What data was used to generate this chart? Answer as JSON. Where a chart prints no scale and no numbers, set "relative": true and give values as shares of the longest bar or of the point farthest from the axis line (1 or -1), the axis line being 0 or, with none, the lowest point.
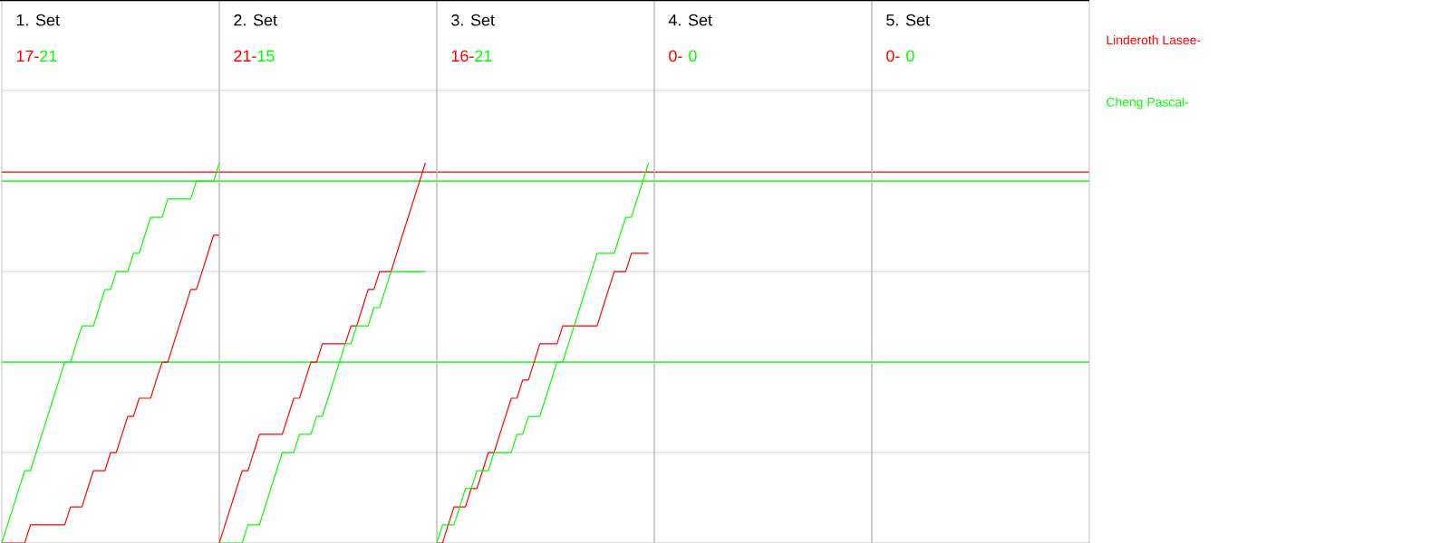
{
  "chart_data": [
    {
      "type": "line",
      "relative": true,
      "title": "1. Set",
      "annotations": [
        "17-",
        "21"
      ],
      "grid": "y",
      "categories": [
        null,
        null,
        null,
        null,
        null,
        null,
        null,
        null,
        null,
        null,
        null,
        null,
        null,
        null,
        null,
        null,
        null,
        null,
        null,
        null,
        null,
        null,
        null,
        null,
        null,
        null,
        null,
        null,
        null,
        null,
        null,
        null,
        null,
        null,
        null,
        null,
        null,
        null,
        null
      ],
      "ref_lines": [
        {
          "axis": "y",
          "value": 0.976,
          "color": "#ff0000"
        },
        {
          "axis": "y",
          "value": 0.952,
          "color": "#00ff00"
        },
        {
          "axis": "y",
          "value": 0.476,
          "color": "#00ff00"
        }
      ],
      "series": [
        {
          "name": "Linderoth Lasee-",
          "color": "#ff0000",
          "values": [
            0,
            0,
            0,
            0,
            0,
            0.048,
            0.048,
            0.048,
            0.048,
            0.048,
            0.048,
            0.048,
            0.095,
            0.095,
            0.095,
            0.143,
            0.19,
            0.19,
            0.19,
            0.238,
            0.238,
            0.286,
            0.333,
            0.333,
            0.381,
            0.381,
            0.381,
            0.429,
            0.476,
            0.476,
            0.524,
            0.571,
            0.619,
            0.667,
            0.667,
            0.714,
            0.762,
            0.81,
            0.81
          ]
        },
        {
          "name": "Cheng Pascal-",
          "color": "#00ff00",
          "values": [
            0,
            0.048,
            0.095,
            0.143,
            0.19,
            0.19,
            0.238,
            0.286,
            0.333,
            0.381,
            0.429,
            0.476,
            0.476,
            0.524,
            0.571,
            0.571,
            0.571,
            0.619,
            0.667,
            0.667,
            0.714,
            0.714,
            0.714,
            0.762,
            0.762,
            0.81,
            0.857,
            0.857,
            0.857,
            0.905,
            0.905,
            0.905,
            0.905,
            0.905,
            0.952,
            0.952,
            0.952,
            0.952,
            1
          ]
        }
      ]
    },
    {
      "type": "line",
      "relative": true,
      "title": "2. Set",
      "annotations": [
        "21-",
        "15"
      ],
      "categories": [
        null,
        null,
        null,
        null,
        null,
        null,
        null,
        null,
        null,
        null,
        null,
        null,
        null,
        null,
        null,
        null,
        null,
        null,
        null,
        null,
        null,
        null,
        null,
        null,
        null,
        null,
        null,
        null,
        null,
        null,
        null,
        null,
        null,
        null,
        null,
        null,
        null,
        null,
        null
      ],
      "series": [
        {
          "color": "#ff0000",
          "values": [
            0,
            0.048,
            0.095,
            0.143,
            0.19,
            0.19,
            0.238,
            0.286,
            0.286,
            0.286,
            0.286,
            0.286,
            0.333,
            0.381,
            0.381,
            0.429,
            0.476,
            0.476,
            0.524,
            0.524,
            0.524,
            0.524,
            0.524,
            0.571,
            0.571,
            0.619,
            0.667,
            0.667,
            0.714,
            0.714,
            0.714,
            0.762,
            0.81,
            0.857,
            0.905,
            0.952,
            1,
            null,
            null
          ]
        },
        {
          "color": "#00ff00",
          "values": [
            0,
            0,
            0,
            0,
            0,
            0.048,
            0.048,
            0.048,
            0.095,
            0.143,
            0.19,
            0.238,
            0.238,
            0.238,
            0.286,
            0.286,
            0.286,
            0.333,
            0.333,
            0.381,
            0.429,
            0.476,
            0.524,
            0.524,
            0.571,
            0.571,
            0.571,
            0.619,
            0.619,
            0.667,
            0.714,
            0.714,
            0.714,
            0.714,
            0.714,
            0.714,
            0.714,
            null,
            null
          ]
        }
      ]
    },
    {
      "type": "line",
      "relative": true,
      "title": "3. Set",
      "annotations": [
        "16-",
        "21"
      ],
      "categories": [
        null,
        null,
        null,
        null,
        null,
        null,
        null,
        null,
        null,
        null,
        null,
        null,
        null,
        null,
        null,
        null,
        null,
        null,
        null,
        null,
        null,
        null,
        null,
        null,
        null,
        null,
        null,
        null,
        null,
        null,
        null,
        null,
        null,
        null,
        null,
        null,
        null,
        null,
        null
      ],
      "series": [
        {
          "color": "#ff0000",
          "values": [
            0,
            0,
            0.048,
            0.095,
            0.095,
            0.095,
            0.143,
            0.143,
            0.19,
            0.238,
            0.238,
            0.286,
            0.333,
            0.381,
            0.381,
            0.429,
            0.429,
            0.476,
            0.524,
            0.524,
            0.524,
            0.524,
            0.571,
            0.571,
            0.571,
            0.571,
            0.571,
            0.571,
            0.571,
            0.619,
            0.667,
            0.714,
            0.714,
            0.714,
            0.762,
            0.762,
            0.762,
            0.762,
            null
          ]
        },
        {
          "color": "#00ff00",
          "values": [
            0,
            0.048,
            0.048,
            0.048,
            0.095,
            0.143,
            0.143,
            0.19,
            0.19,
            0.19,
            0.238,
            0.238,
            0.238,
            0.238,
            0.286,
            0.286,
            0.333,
            0.333,
            0.333,
            0.381,
            0.429,
            0.476,
            0.476,
            0.524,
            0.571,
            0.619,
            0.667,
            0.714,
            0.762,
            0.762,
            0.762,
            0.762,
            0.81,
            0.857,
            0.857,
            0.905,
            0.952,
            1,
            null
          ]
        }
      ]
    },
    {
      "type": "other",
      "title": "4. Set",
      "annotations": [
        "0-",
        "0"
      ],
      "series": [
        {
          "color": "#ff0000"
        },
        {
          "color": "#00ff00"
        }
      ]
    },
    {
      "type": "other",
      "title": "5. Set",
      "annotations": [
        "0-",
        "0"
      ],
      "series": [
        {
          "color": "#ff0000"
        },
        {
          "color": "#00ff00"
        }
      ]
    }
  ]
}
